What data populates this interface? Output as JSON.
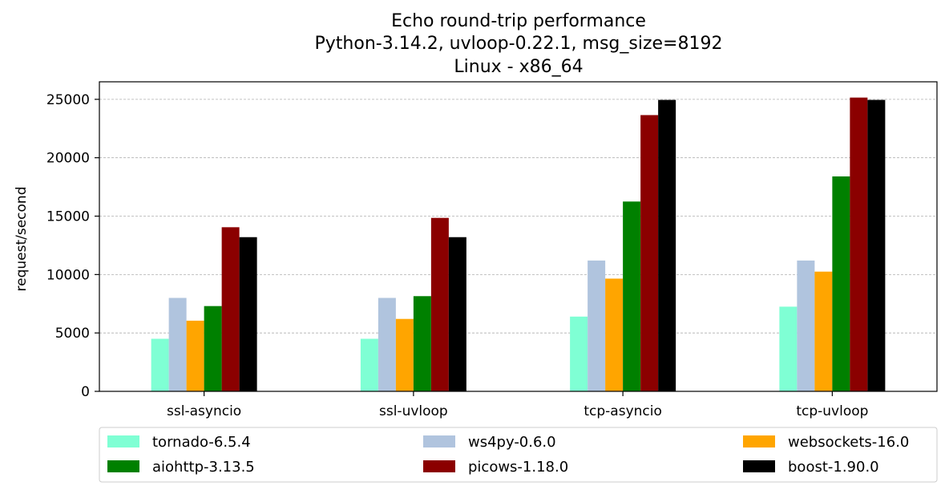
{
  "chart_data": {
    "type": "bar",
    "title_lines": [
      "Echo round-trip performance",
      "Python-3.14.2, uvloop-0.22.1, msg_size=8192",
      "Linux - x86_64"
    ],
    "xlabel": "",
    "ylabel": "request/second",
    "ylim": [
      0,
      26500
    ],
    "yticks": [
      0,
      5000,
      10000,
      15000,
      20000,
      25000
    ],
    "grid": "y-dashed",
    "legend_placement": "bottom",
    "categories": [
      "ssl-asyncio",
      "ssl-uvloop",
      "tcp-asyncio",
      "tcp-uvloop"
    ],
    "series": [
      {
        "name": "tornado-6.5.4",
        "color": "#7fffd4",
        "values": [
          4500,
          4500,
          6400,
          7250
        ]
      },
      {
        "name": "ws4py-0.6.0",
        "color": "#b0c4de",
        "values": [
          8000,
          8000,
          11200,
          11200
        ]
      },
      {
        "name": "websockets-16.0",
        "color": "#ffa500",
        "values": [
          6050,
          6200,
          9650,
          10250
        ]
      },
      {
        "name": "aiohttp-3.13.5",
        "color": "#008000",
        "values": [
          7300,
          8150,
          16250,
          18400
        ]
      },
      {
        "name": "picows-1.18.0",
        "color": "#8b0000",
        "values": [
          14050,
          14850,
          23650,
          25150
        ]
      },
      {
        "name": "boost-1.90.0",
        "color": "#000000",
        "values": [
          13200,
          13200,
          24950,
          24950
        ]
      }
    ]
  }
}
